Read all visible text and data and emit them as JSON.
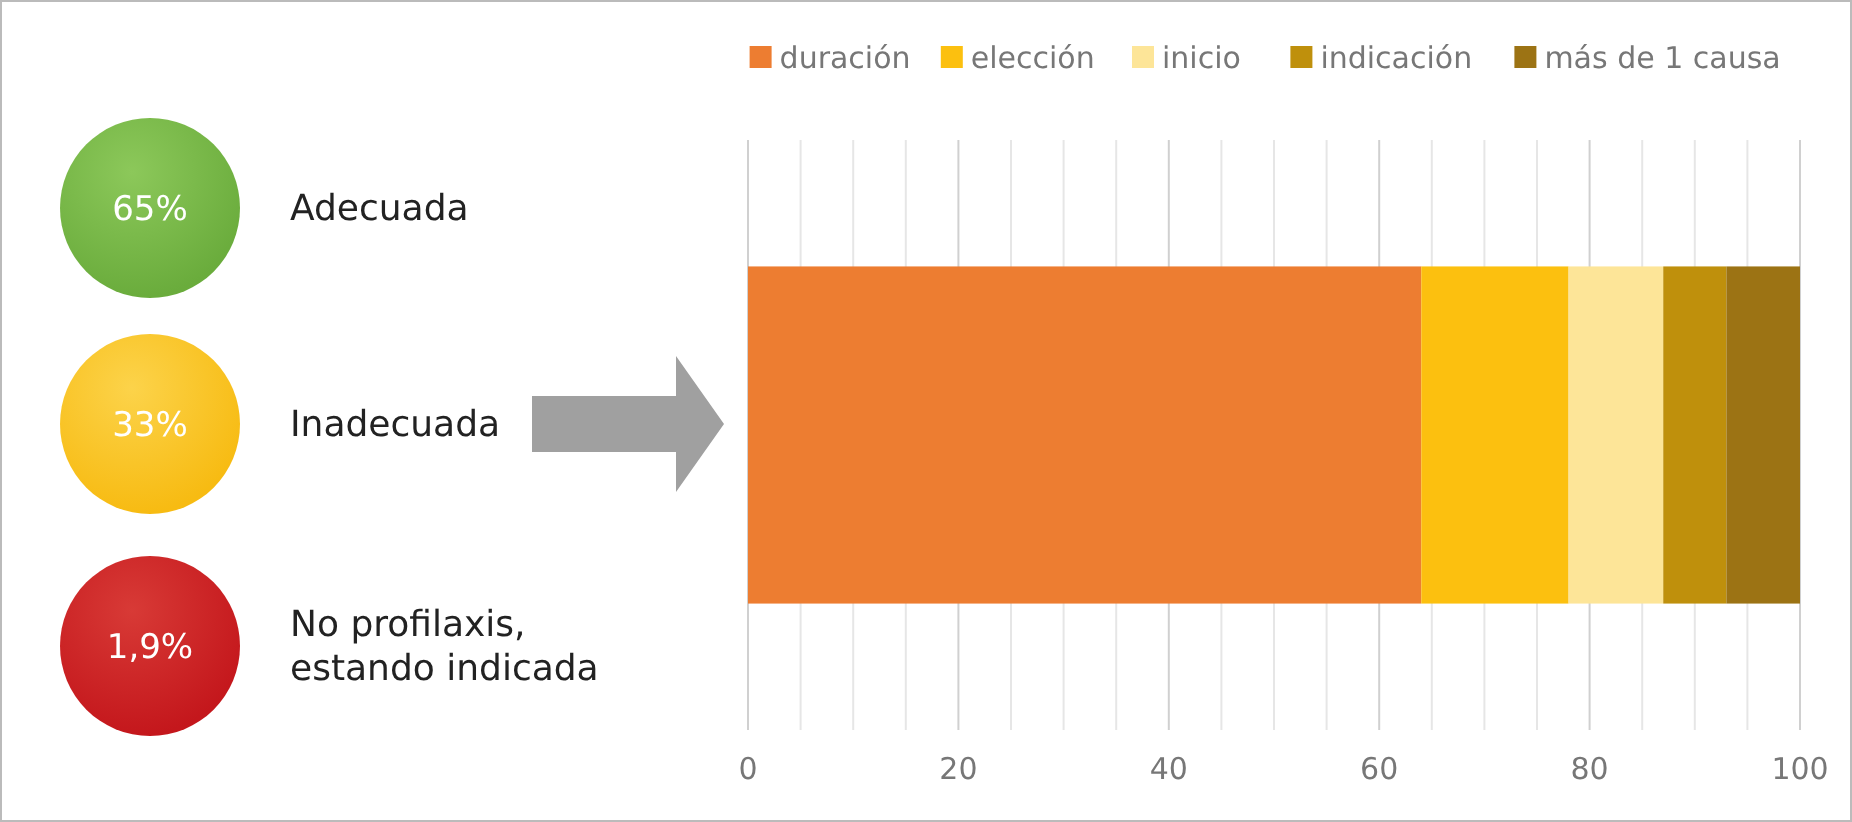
{
  "chart_data": {
    "type": "bar",
    "orientation": "horizontal",
    "stacked": true,
    "categories": [
      null
    ],
    "series": [
      {
        "name": "duración",
        "color": "#ed7d31",
        "values": [
          64
        ]
      },
      {
        "name": "elección",
        "color": "#fcc00f",
        "values": [
          14
        ]
      },
      {
        "name": "inicio",
        "color": "#fde598",
        "values": [
          9
        ]
      },
      {
        "name": "indicación",
        "color": "#bf900c",
        "values": [
          6
        ]
      },
      {
        "name": "más de 1 causa",
        "color": "#9c7314",
        "values": [
          7
        ]
      }
    ],
    "xlim": [
      0,
      100
    ],
    "xticks": [
      0,
      {
        "value": 5,
        "label": null
      },
      {
        "value": 10,
        "label": null
      },
      {
        "value": 15,
        "label": null
      },
      20,
      {
        "value": 25,
        "label": null
      },
      {
        "value": 30,
        "label": null
      },
      {
        "value": 35,
        "label": null
      },
      40,
      {
        "value": 45,
        "label": null
      },
      {
        "value": 50,
        "label": null
      },
      {
        "value": 55,
        "label": null
      },
      60,
      {
        "value": 65,
        "label": null
      },
      {
        "value": 70,
        "label": null
      },
      {
        "value": 75,
        "label": null
      },
      80,
      {
        "value": 85,
        "label": null
      },
      {
        "value": 90,
        "label": null
      },
      {
        "value": 95,
        "label": null
      },
      100
    ],
    "grid": "x",
    "legend": "top right",
    "annotations": [
      "65%",
      "Adecuada",
      "33%",
      "Inadecuada",
      "1,9%",
      "No profilaxis,\nestando indicada"
    ]
  }
}
